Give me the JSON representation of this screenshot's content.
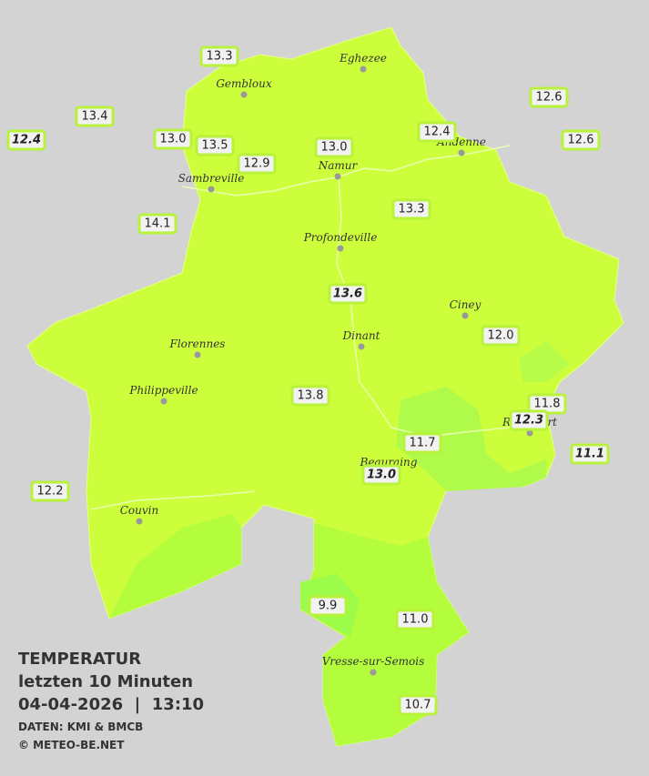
{
  "legend": {
    "title": "TEMPERATUR",
    "subtitle": "letzten 10 Minuten",
    "timestamp": "04-04-2026  |  13:10",
    "source": "DATEN: KMI & BMCB",
    "copyright": "© METEO-BE.NET"
  },
  "cities": [
    {
      "name": "Eghezee"
    },
    {
      "name": "Gembloux"
    },
    {
      "name": "Andenne"
    },
    {
      "name": "Namur"
    },
    {
      "name": "Sambreville"
    },
    {
      "name": "Profondeville"
    },
    {
      "name": "Ciney"
    },
    {
      "name": "Dinant"
    },
    {
      "name": "Florennes"
    },
    {
      "name": "Philippeville"
    },
    {
      "name": "Rochefort"
    },
    {
      "name": "Beauraing"
    },
    {
      "name": "Couvin"
    },
    {
      "name": "Vresse-sur-Semois"
    }
  ],
  "stations": [
    {
      "value": "13.3",
      "italic": false
    },
    {
      "value": "13.4",
      "italic": false
    },
    {
      "value": "12.4",
      "italic": true
    },
    {
      "value": "13.0",
      "italic": false
    },
    {
      "value": "13.5",
      "italic": false
    },
    {
      "value": "12.9",
      "italic": false
    },
    {
      "value": "13.0",
      "italic": false
    },
    {
      "value": "12.4",
      "italic": false
    },
    {
      "value": "12.6",
      "italic": false
    },
    {
      "value": "12.6",
      "italic": false
    },
    {
      "value": "13.3",
      "italic": false
    },
    {
      "value": "14.1",
      "italic": false
    },
    {
      "value": "13.6",
      "italic": true
    },
    {
      "value": "12.0",
      "italic": false
    },
    {
      "value": "13.8",
      "italic": false
    },
    {
      "value": "11.8",
      "italic": false
    },
    {
      "value": "12.3",
      "italic": true
    },
    {
      "value": "11.7",
      "italic": false
    },
    {
      "value": "13.0",
      "italic": true
    },
    {
      "value": "11.1",
      "italic": true
    },
    {
      "value": "12.2",
      "italic": false
    },
    {
      "value": "9.9",
      "italic": false
    },
    {
      "value": "11.0",
      "italic": false
    },
    {
      "value": "10.7",
      "italic": false
    }
  ]
}
